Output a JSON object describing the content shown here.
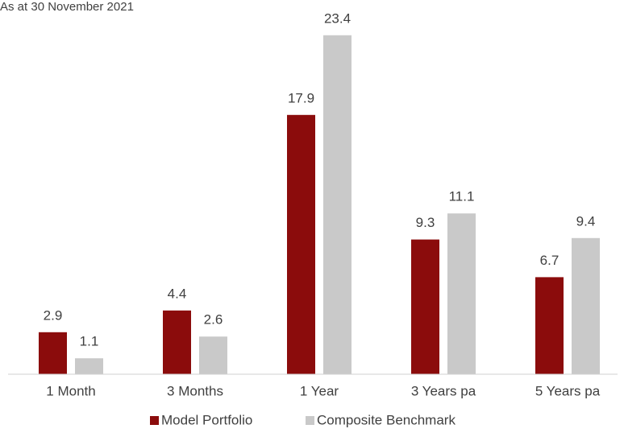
{
  "chart_data": {
    "type": "bar",
    "subtitle": "As at 30 November 2021",
    "categories": [
      "1 Month",
      "3 Months",
      "1 Year",
      "3 Years pa",
      "5 Years pa"
    ],
    "series": [
      {
        "name": "Model Portfolio",
        "color": "#8b0c0c",
        "values": [
          2.9,
          4.4,
          17.9,
          9.3,
          6.7
        ]
      },
      {
        "name": "Composite Benchmark",
        "color": "#c9c9c9",
        "values": [
          1.1,
          2.6,
          23.4,
          11.1,
          9.4
        ]
      }
    ],
    "ylim": [
      0,
      25
    ],
    "legend": "bottom"
  }
}
